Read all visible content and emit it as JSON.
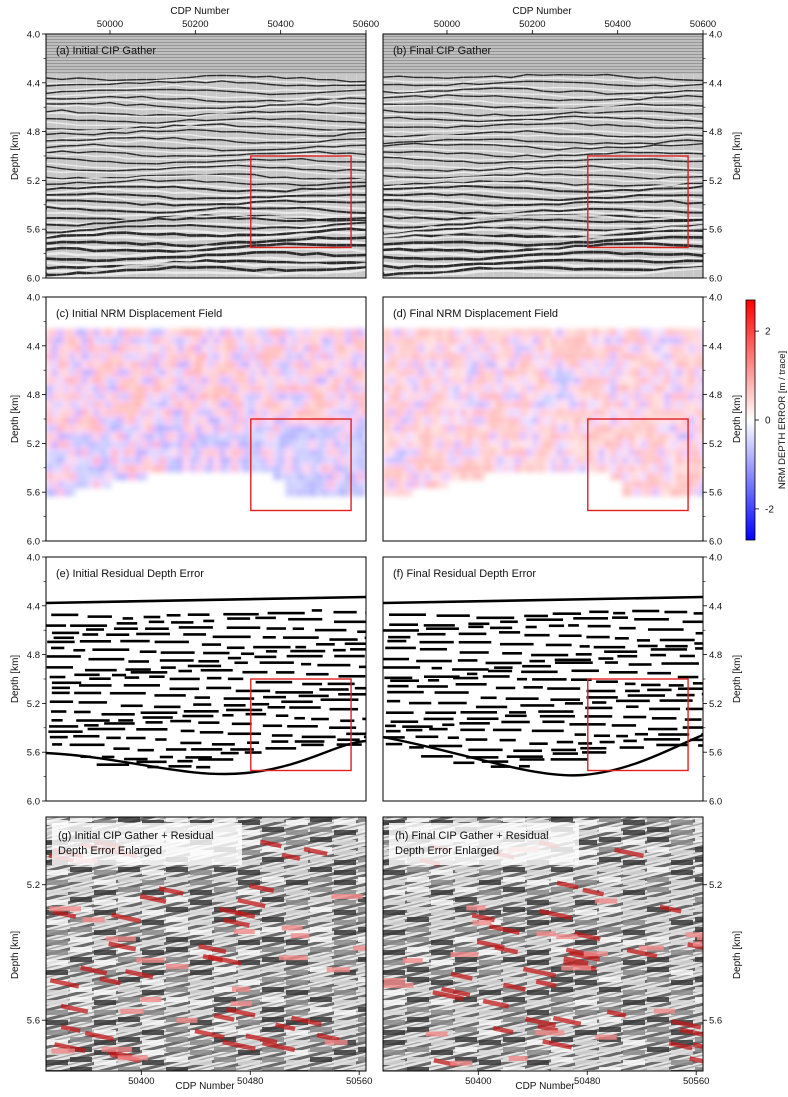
{
  "axis_labels": {
    "x": "CDP Number",
    "y_left": "Depth [km]",
    "y_right": "Depth [km]",
    "colorbar": "NRM DEPTH ERROR [m / trace]"
  },
  "top_x_ticks": [
    "50000",
    "50200",
    "50400",
    "50600"
  ],
  "bottom_x_ticks": [
    "50400",
    "50480",
    "50560"
  ],
  "depth_ticks": [
    "4.0",
    "4.4",
    "4.8",
    "5.2",
    "5.6",
    "6.0"
  ],
  "zoom_depth_ticks": [
    "5.2",
    "5.6"
  ],
  "colorbar_ticks": [
    "2",
    "0",
    "-2"
  ],
  "colors": {
    "positive": "#ff0000",
    "negative": "#0000ff",
    "zero": "#ffffff",
    "highlight_box": "#e02020",
    "residual_overlay": "#c01818"
  },
  "panels": [
    {
      "title": "(a) Initial CIP Gather",
      "kind": "seismic"
    },
    {
      "title": "(b) Final CIP Gather",
      "kind": "seismic"
    },
    {
      "title": "(c) Initial NRM Displacement Field",
      "kind": "displacement"
    },
    {
      "title": "(d) Final NRM Displacement Field",
      "kind": "displacement"
    },
    {
      "title": "(e) Initial Residual Depth Error",
      "kind": "residual"
    },
    {
      "title": "(f) Final Residual Depth Error",
      "kind": "residual"
    },
    {
      "title_line1": "(g) Initial CIP Gather + Residual",
      "title_line2": "Depth Error Enlarged",
      "kind": "zoom"
    },
    {
      "title_line1": "(h) Final CIP Gather + Residual",
      "title_line2": "Depth Error Enlarged",
      "kind": "zoom"
    }
  ],
  "chart_data": {
    "type": "heatmap",
    "panel_x_range": [
      49850,
      50600
    ],
    "panel_depth_range_km": [
      4.0,
      6.0
    ],
    "zoom_x_range": [
      50330,
      50565
    ],
    "zoom_depth_range_km": [
      5.0,
      5.75
    ],
    "highlight_box": {
      "x": [
        50330,
        50565
      ],
      "depth_km": [
        5.0,
        5.75
      ]
    },
    "colorbar_range": [
      -2.7,
      2.7
    ]
  }
}
